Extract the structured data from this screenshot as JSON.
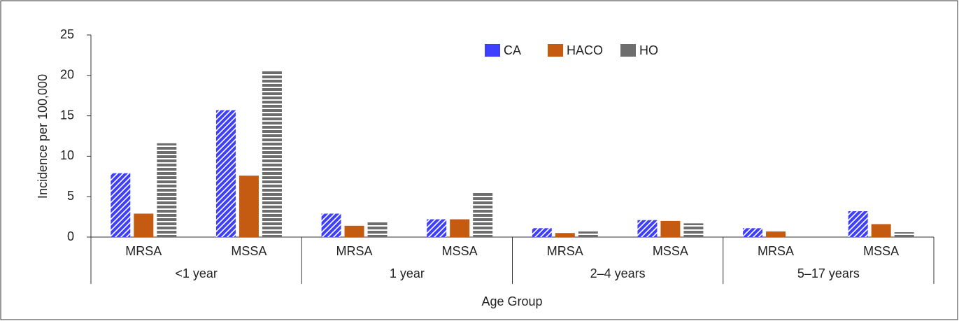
{
  "chart_data": {
    "type": "bar",
    "y_label": "Incidence per 100,000",
    "x_label": "Age Group",
    "categories": [
      "MRSA",
      "MSSA",
      "MRSA",
      "MSSA",
      "MRSA",
      "MSSA",
      "MRSA",
      "MSSA"
    ],
    "groups": [
      "<1 year",
      "1 year",
      "2–4 years",
      "5–17 years"
    ],
    "series": [
      {
        "name": "CA",
        "color": "#3f3fff",
        "hatch": "diagonal",
        "values": [
          7.9,
          15.7,
          2.9,
          2.2,
          1.1,
          2.1,
          1.1,
          3.2
        ]
      },
      {
        "name": "HACO",
        "color": "#c55a11",
        "hatch": "none",
        "values": [
          2.9,
          7.6,
          1.4,
          2.2,
          0.5,
          2.0,
          0.7,
          1.6
        ]
      },
      {
        "name": "HO",
        "color": "#6d6d6d",
        "hatch": "horizontal",
        "values": [
          11.6,
          20.5,
          1.9,
          5.6,
          0.7,
          1.7,
          0,
          0.6
        ]
      }
    ],
    "ylim": [
      0,
      25
    ],
    "yticks": [
      0,
      5,
      10,
      15,
      20,
      25
    ],
    "grid": false,
    "legend": "top"
  }
}
